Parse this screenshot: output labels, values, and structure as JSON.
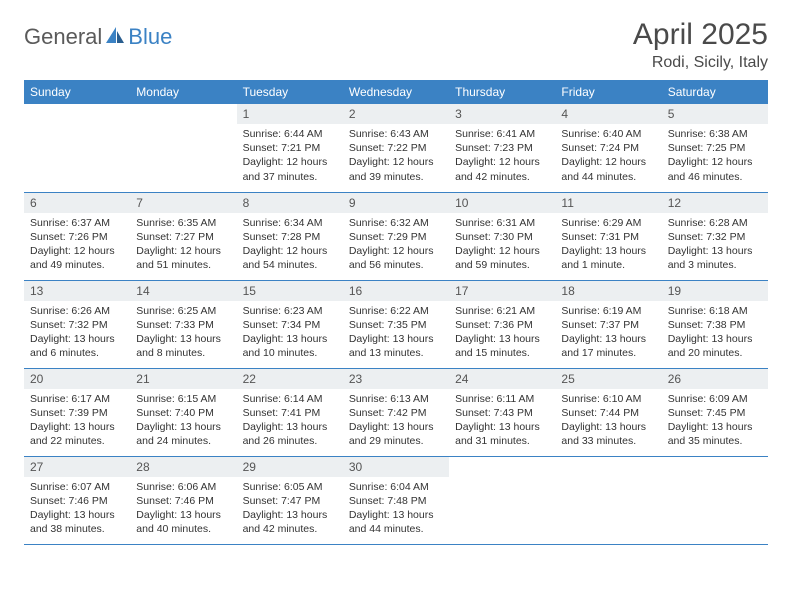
{
  "brand": {
    "part1": "General",
    "part2": "Blue"
  },
  "title": "April 2025",
  "location": "Rodi, Sicily, Italy",
  "colors": {
    "header_bg": "#3b82c4",
    "header_text": "#ffffff",
    "daynum_bg": "#eceff1",
    "row_border": "#3b82c4",
    "body_text": "#333333",
    "title_text": "#4a4a4a",
    "logo_gray": "#5a5a5a",
    "logo_blue": "#3b82c4",
    "page_bg": "#ffffff"
  },
  "typography": {
    "title_fontsize": 30,
    "location_fontsize": 16,
    "th_fontsize": 12,
    "daynum_fontsize": 12,
    "cell_fontsize": 10.5
  },
  "weekdays": [
    "Sunday",
    "Monday",
    "Tuesday",
    "Wednesday",
    "Thursday",
    "Friday",
    "Saturday"
  ],
  "weeks": [
    [
      {
        "empty": true
      },
      {
        "empty": true
      },
      {
        "day": "1",
        "sunrise": "6:44 AM",
        "sunset": "7:21 PM",
        "daylight": "12 hours and 37 minutes."
      },
      {
        "day": "2",
        "sunrise": "6:43 AM",
        "sunset": "7:22 PM",
        "daylight": "12 hours and 39 minutes."
      },
      {
        "day": "3",
        "sunrise": "6:41 AM",
        "sunset": "7:23 PM",
        "daylight": "12 hours and 42 minutes."
      },
      {
        "day": "4",
        "sunrise": "6:40 AM",
        "sunset": "7:24 PM",
        "daylight": "12 hours and 44 minutes."
      },
      {
        "day": "5",
        "sunrise": "6:38 AM",
        "sunset": "7:25 PM",
        "daylight": "12 hours and 46 minutes."
      }
    ],
    [
      {
        "day": "6",
        "sunrise": "6:37 AM",
        "sunset": "7:26 PM",
        "daylight": "12 hours and 49 minutes."
      },
      {
        "day": "7",
        "sunrise": "6:35 AM",
        "sunset": "7:27 PM",
        "daylight": "12 hours and 51 minutes."
      },
      {
        "day": "8",
        "sunrise": "6:34 AM",
        "sunset": "7:28 PM",
        "daylight": "12 hours and 54 minutes."
      },
      {
        "day": "9",
        "sunrise": "6:32 AM",
        "sunset": "7:29 PM",
        "daylight": "12 hours and 56 minutes."
      },
      {
        "day": "10",
        "sunrise": "6:31 AM",
        "sunset": "7:30 PM",
        "daylight": "12 hours and 59 minutes."
      },
      {
        "day": "11",
        "sunrise": "6:29 AM",
        "sunset": "7:31 PM",
        "daylight": "13 hours and 1 minute."
      },
      {
        "day": "12",
        "sunrise": "6:28 AM",
        "sunset": "7:32 PM",
        "daylight": "13 hours and 3 minutes."
      }
    ],
    [
      {
        "day": "13",
        "sunrise": "6:26 AM",
        "sunset": "7:32 PM",
        "daylight": "13 hours and 6 minutes."
      },
      {
        "day": "14",
        "sunrise": "6:25 AM",
        "sunset": "7:33 PM",
        "daylight": "13 hours and 8 minutes."
      },
      {
        "day": "15",
        "sunrise": "6:23 AM",
        "sunset": "7:34 PM",
        "daylight": "13 hours and 10 minutes."
      },
      {
        "day": "16",
        "sunrise": "6:22 AM",
        "sunset": "7:35 PM",
        "daylight": "13 hours and 13 minutes."
      },
      {
        "day": "17",
        "sunrise": "6:21 AM",
        "sunset": "7:36 PM",
        "daylight": "13 hours and 15 minutes."
      },
      {
        "day": "18",
        "sunrise": "6:19 AM",
        "sunset": "7:37 PM",
        "daylight": "13 hours and 17 minutes."
      },
      {
        "day": "19",
        "sunrise": "6:18 AM",
        "sunset": "7:38 PM",
        "daylight": "13 hours and 20 minutes."
      }
    ],
    [
      {
        "day": "20",
        "sunrise": "6:17 AM",
        "sunset": "7:39 PM",
        "daylight": "13 hours and 22 minutes."
      },
      {
        "day": "21",
        "sunrise": "6:15 AM",
        "sunset": "7:40 PM",
        "daylight": "13 hours and 24 minutes."
      },
      {
        "day": "22",
        "sunrise": "6:14 AM",
        "sunset": "7:41 PM",
        "daylight": "13 hours and 26 minutes."
      },
      {
        "day": "23",
        "sunrise": "6:13 AM",
        "sunset": "7:42 PM",
        "daylight": "13 hours and 29 minutes."
      },
      {
        "day": "24",
        "sunrise": "6:11 AM",
        "sunset": "7:43 PM",
        "daylight": "13 hours and 31 minutes."
      },
      {
        "day": "25",
        "sunrise": "6:10 AM",
        "sunset": "7:44 PM",
        "daylight": "13 hours and 33 minutes."
      },
      {
        "day": "26",
        "sunrise": "6:09 AM",
        "sunset": "7:45 PM",
        "daylight": "13 hours and 35 minutes."
      }
    ],
    [
      {
        "day": "27",
        "sunrise": "6:07 AM",
        "sunset": "7:46 PM",
        "daylight": "13 hours and 38 minutes."
      },
      {
        "day": "28",
        "sunrise": "6:06 AM",
        "sunset": "7:46 PM",
        "daylight": "13 hours and 40 minutes."
      },
      {
        "day": "29",
        "sunrise": "6:05 AM",
        "sunset": "7:47 PM",
        "daylight": "13 hours and 42 minutes."
      },
      {
        "day": "30",
        "sunrise": "6:04 AM",
        "sunset": "7:48 PM",
        "daylight": "13 hours and 44 minutes."
      },
      {
        "empty": true
      },
      {
        "empty": true
      },
      {
        "empty": true
      }
    ]
  ],
  "labels": {
    "sunrise": "Sunrise:",
    "sunset": "Sunset:",
    "daylight": "Daylight:"
  }
}
